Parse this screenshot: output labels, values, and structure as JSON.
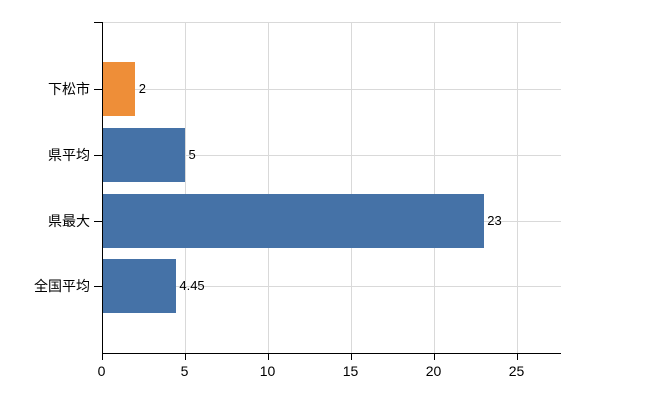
{
  "chart_data": {
    "type": "bar",
    "orientation": "horizontal",
    "categories": [
      "下松市",
      "県平均",
      "県最大",
      "全国平均"
    ],
    "values": [
      2,
      5,
      23,
      4.45
    ],
    "value_labels": [
      "2",
      "5",
      "23",
      "4.45"
    ],
    "bar_colors": [
      "#ee8e38",
      "#4572a7",
      "#4572a7",
      "#4572a7"
    ],
    "x_axis": {
      "ticks": [
        0,
        5,
        10,
        15,
        20,
        25
      ],
      "tick_labels": [
        "0",
        "5",
        "10",
        "15",
        "20",
        "25"
      ],
      "range": [
        0,
        27.7
      ]
    },
    "grid": {
      "vertical": true,
      "horizontal": true,
      "top_border": true,
      "color": "#d9d9d9"
    },
    "axis_color": "#000000",
    "text_color": "#000000",
    "title": "",
    "legend": "none"
  }
}
